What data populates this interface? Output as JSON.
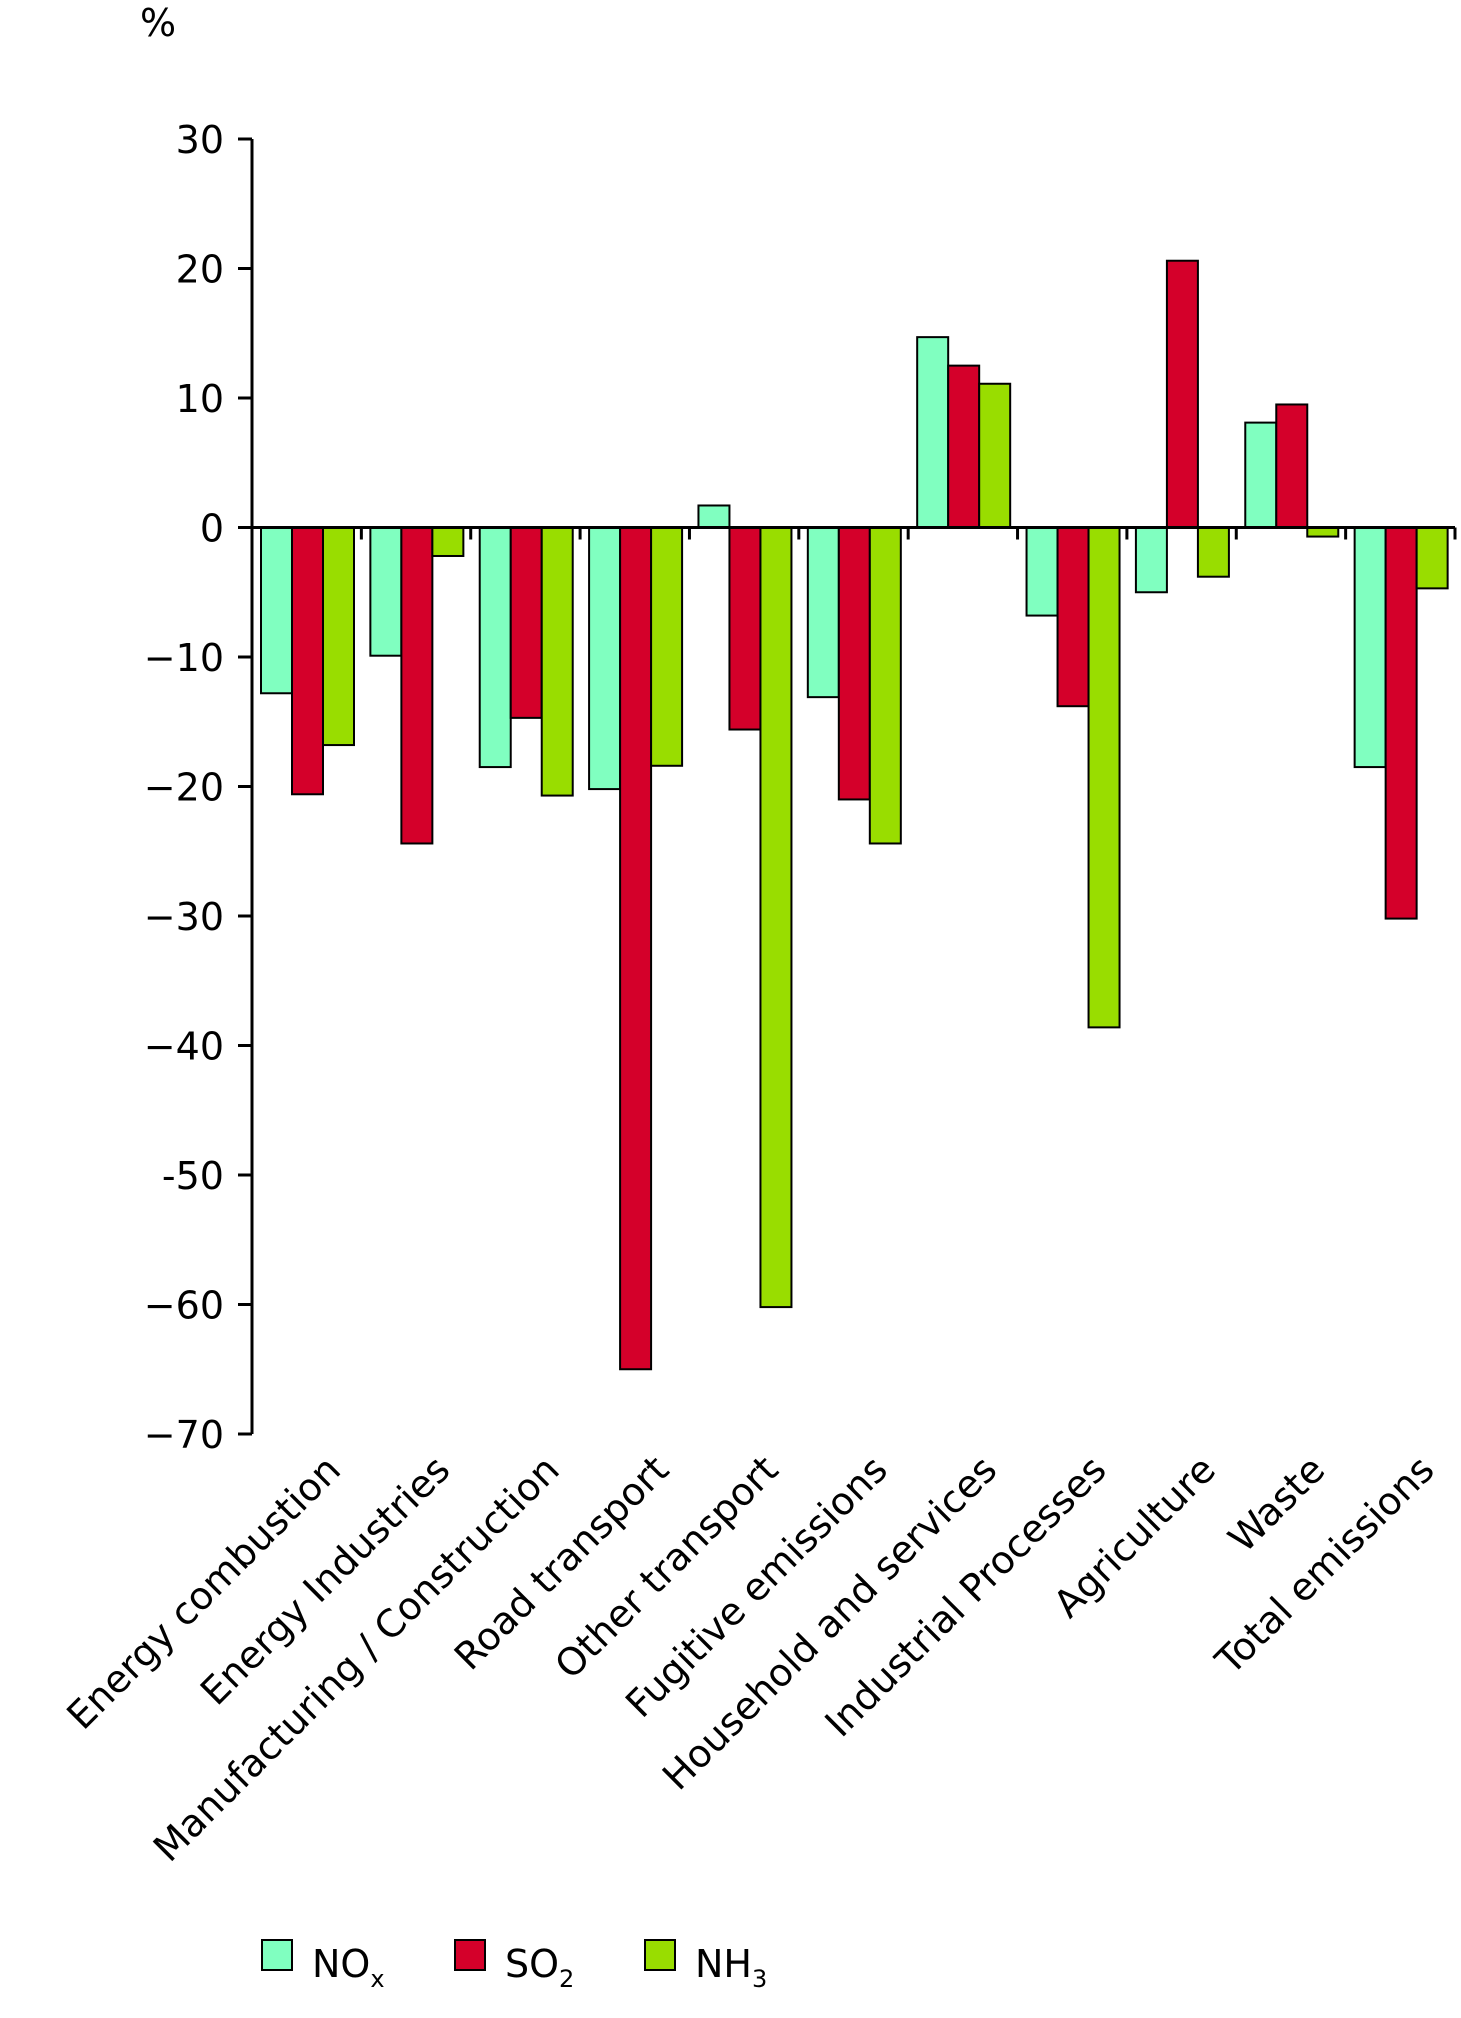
{
  "chart_data": {
    "type": "bar",
    "ylabel": "%",
    "ylim": [
      -70,
      30
    ],
    "yticks": [
      "30",
      "20",
      "10",
      "0",
      "−10",
      "−20",
      "−30",
      "−40",
      "-50",
      "−60",
      "−70"
    ],
    "ytick_values": [
      30,
      20,
      10,
      0,
      -10,
      -20,
      -30,
      -40,
      -50,
      -60,
      -70
    ],
    "categories": [
      "Energy combustion",
      "Energy Industries",
      "Manufacturing / Construction",
      "Road transport",
      "Other transport",
      "Fugitive emissions",
      "Household and services",
      "Industrial Processes",
      "Agriculture",
      "Waste",
      "Total emissions"
    ],
    "series": [
      {
        "name": "NOx",
        "label_main": "NO",
        "label_sub": "x",
        "color": "#80ffc0",
        "values": [
          -12.8,
          -9.9,
          -18.5,
          -20.2,
          1.7,
          -13.1,
          14.7,
          -6.8,
          -5.0,
          8.1,
          -18.5
        ]
      },
      {
        "name": "SO2",
        "label_main": "SO",
        "label_sub": "2",
        "color": "#d4002a",
        "values": [
          -20.6,
          -24.4,
          -14.7,
          -65.0,
          -15.6,
          -21.0,
          12.5,
          -13.8,
          20.6,
          9.5,
          -30.2
        ]
      },
      {
        "name": "NH3",
        "label_main": "NH",
        "label_sub": "3",
        "color": "#99dd00",
        "values": [
          -16.8,
          -2.2,
          -20.7,
          -18.4,
          -60.2,
          -24.4,
          11.1,
          -38.6,
          -3.8,
          -0.7,
          -4.7
        ]
      }
    ],
    "legend_position": "bottom",
    "grid": false
  }
}
